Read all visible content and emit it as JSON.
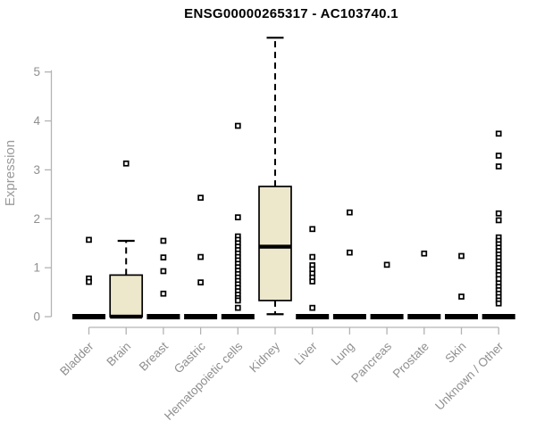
{
  "chart_data": {
    "type": "boxplot",
    "title": "ENSG00000265317 - AC103740.1",
    "ylabel": "Expression",
    "xlabel": "",
    "ylim": [
      0,
      5.8
    ],
    "yticks": [
      0,
      1,
      2,
      3,
      4,
      5
    ],
    "grid": false,
    "legend": false,
    "categories": [
      "Bladder",
      "Brain",
      "Breast",
      "Gastric",
      "Hematopoietic cells",
      "Kidney",
      "Liver",
      "Lung",
      "Pancreas",
      "Prostate",
      "Skin",
      "Unknown / Other"
    ],
    "boxes": [
      {
        "category": "Bladder",
        "q1": 0,
        "median": 0,
        "q3": 0,
        "whisker_low": 0,
        "whisker_high": 0,
        "outliers": [
          1.57,
          0.78,
          0.71
        ]
      },
      {
        "category": "Brain",
        "q1": 0,
        "median": 0,
        "q3": 0.85,
        "whisker_low": 0,
        "whisker_high": 1.55,
        "outliers": [
          3.13
        ]
      },
      {
        "category": "Breast",
        "q1": 0,
        "median": 0,
        "q3": 0,
        "whisker_low": 0,
        "whisker_high": 0,
        "outliers": [
          1.55,
          1.21,
          0.93,
          0.47
        ]
      },
      {
        "category": "Gastric",
        "q1": 0,
        "median": 0,
        "q3": 0,
        "whisker_low": 0,
        "whisker_high": 0,
        "outliers": [
          2.43,
          1.22,
          0.7
        ]
      },
      {
        "category": "Hematopoietic cells",
        "q1": 0,
        "median": 0,
        "q3": 0,
        "whisker_low": 0,
        "whisker_high": 0,
        "outliers": [
          3.9,
          2.03,
          1.64,
          1.57,
          1.5,
          1.43,
          1.36,
          1.29,
          1.22,
          1.15,
          1.08,
          1.01,
          0.94,
          0.87,
          0.8,
          0.73,
          0.66,
          0.59,
          0.52,
          0.45,
          0.38,
          0.33,
          0.18
        ]
      },
      {
        "category": "Kidney",
        "q1": 0.33,
        "median": 1.43,
        "q3": 2.66,
        "whisker_low": 0.05,
        "whisker_high": 5.7,
        "outliers": []
      },
      {
        "category": "Liver",
        "q1": 0,
        "median": 0,
        "q3": 0,
        "whisker_low": 0,
        "whisker_high": 0,
        "outliers": [
          1.79,
          1.22,
          1.05,
          0.97,
          0.88,
          0.8,
          0.72,
          0.18
        ]
      },
      {
        "category": "Lung",
        "q1": 0,
        "median": 0,
        "q3": 0,
        "whisker_low": 0,
        "whisker_high": 0,
        "outliers": [
          2.13,
          1.31
        ]
      },
      {
        "category": "Pancreas",
        "q1": 0,
        "median": 0,
        "q3": 0,
        "whisker_low": 0,
        "whisker_high": 0,
        "outliers": [
          1.06
        ]
      },
      {
        "category": "Prostate",
        "q1": 0,
        "median": 0,
        "q3": 0,
        "whisker_low": 0,
        "whisker_high": 0,
        "outliers": [
          1.29
        ]
      },
      {
        "category": "Skin",
        "q1": 0,
        "median": 0,
        "q3": 0,
        "whisker_low": 0,
        "whisker_high": 0,
        "outliers": [
          1.24,
          0.41
        ]
      },
      {
        "category": "Unknown / Other",
        "q1": 0,
        "median": 0,
        "q3": 0,
        "whisker_low": 0,
        "whisker_high": 0,
        "outliers": [
          3.74,
          3.29,
          3.07,
          2.11,
          1.97,
          1.62,
          1.55,
          1.48,
          1.41,
          1.34,
          1.27,
          1.2,
          1.13,
          1.06,
          0.99,
          0.92,
          0.85,
          0.77,
          0.68,
          0.61,
          0.54,
          0.47,
          0.4,
          0.33,
          0.27
        ]
      }
    ],
    "marker": "small-open-square",
    "colors": {
      "box_fill": "#EDE7CC",
      "box_border": "#000000",
      "median": "#000000",
      "whisker": "#000000",
      "axis": "#B3B3B3",
      "tick_label": "#8F8F8F",
      "title": "#000000",
      "background": "#FFFFFF"
    }
  }
}
